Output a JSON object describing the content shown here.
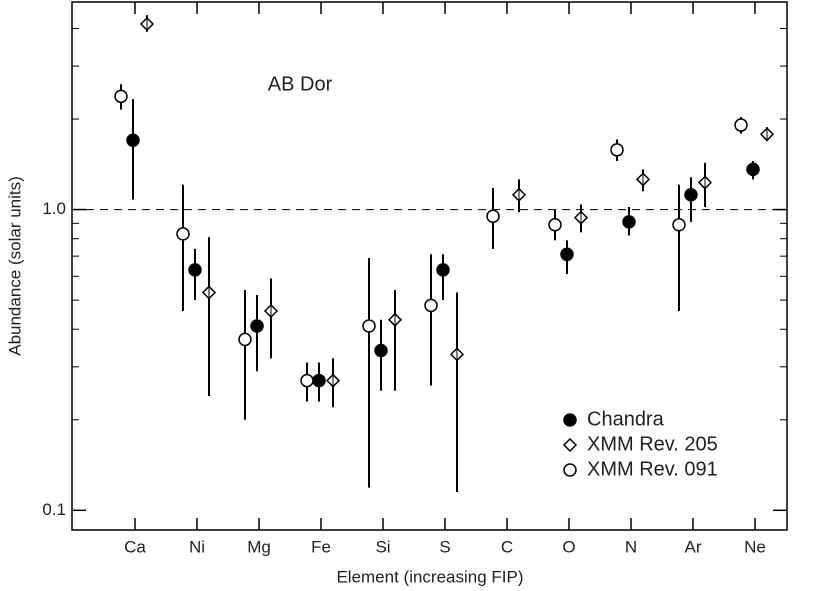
{
  "chart_data": {
    "type": "errorbar",
    "annotation": "AB Dor",
    "x_label": "Element (increasing FIP)",
    "y_label": "Abundance (solar units)",
    "categories": [
      "Ca",
      "Ni",
      "Mg",
      "Fe",
      "Si",
      "S",
      "C",
      "O",
      "N",
      "Ar",
      "Ne"
    ],
    "log_y": true,
    "ylim": [
      0.086,
      4.9
    ],
    "yticks": [
      0.1,
      {
        "value": 1,
        "label": "1.0"
      }
    ],
    "minor_yticks": [
      0.2,
      0.3,
      0.4,
      0.5,
      0.6,
      0.7,
      0.8,
      0.9,
      2,
      3,
      4
    ],
    "reference_line": 1,
    "legend": "lower right",
    "series": [
      {
        "name": "Chandra",
        "marker": "filled-circle",
        "color": "#000000",
        "values": [
          1.7,
          0.63,
          0.41,
          0.27,
          0.34,
          0.63,
          null,
          0.71,
          0.91,
          1.12,
          1.36
        ],
        "lower": [
          1.08,
          0.5,
          0.29,
          0.23,
          0.25,
          0.5,
          null,
          0.61,
          0.82,
          0.91,
          1.26
        ],
        "upper": [
          2.33,
          0.74,
          0.52,
          0.31,
          0.43,
          0.71,
          null,
          0.79,
          1.02,
          1.28,
          1.45
        ]
      },
      {
        "name": "XMM Rev. 205",
        "marker": "diamond",
        "color": "#000000",
        "values": [
          4.14,
          0.53,
          0.46,
          0.27,
          0.43,
          0.33,
          1.12,
          0.94,
          1.26,
          1.23,
          1.78
        ],
        "lower": [
          3.9,
          0.24,
          0.32,
          0.22,
          0.25,
          0.115,
          0.98,
          0.84,
          1.15,
          1.02,
          1.69
        ],
        "upper": [
          4.43,
          0.81,
          0.59,
          0.32,
          0.54,
          0.53,
          1.26,
          1.04,
          1.36,
          1.43,
          1.88
        ]
      },
      {
        "name": "XMM Rev. 091",
        "marker": "open-circle",
        "color": "#000000",
        "values": [
          2.38,
          0.83,
          0.37,
          0.27,
          0.41,
          0.48,
          0.95,
          0.89,
          1.58,
          0.89,
          1.91
        ],
        "lower": [
          2.15,
          0.46,
          0.2,
          0.23,
          0.119,
          0.26,
          0.74,
          0.79,
          1.45,
          0.46,
          1.79
        ],
        "upper": [
          2.61,
          1.21,
          0.54,
          0.31,
          0.69,
          0.71,
          1.18,
          1.0,
          1.71,
          1.21,
          2.03
        ]
      }
    ]
  }
}
